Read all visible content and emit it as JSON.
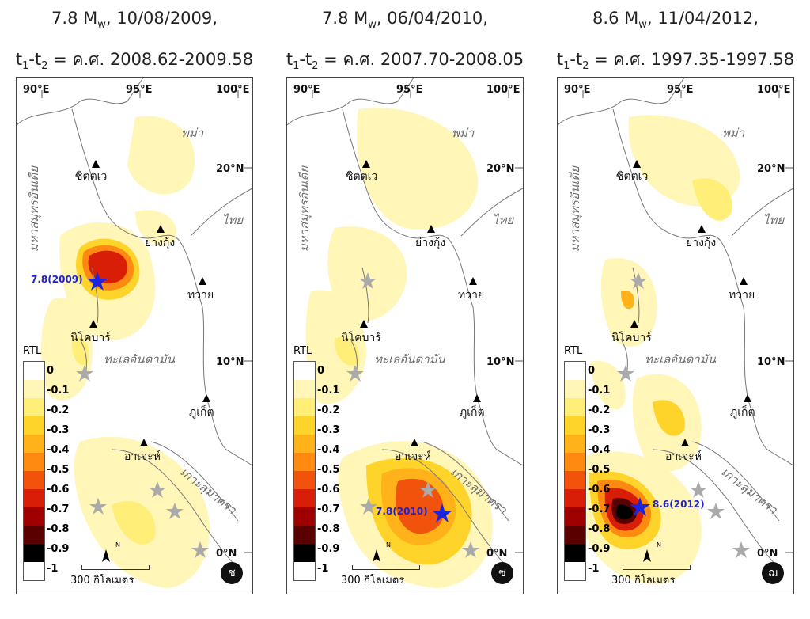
{
  "panels": [
    {
      "title_line1": "7.8 M",
      "title_sub": "w",
      "title_date": ", 10/08/2009,",
      "title_line2_t1": "t",
      "title_line2_sub1": "1",
      "title_line2_dash": "-t",
      "title_line2_sub2": "2",
      "title_line2_rest": " = ค.ศ. 2008.62-2009.58",
      "quake_label": "7.8(2009)",
      "badge": "ช"
    },
    {
      "title_line1": "7.8 M",
      "title_sub": "w",
      "title_date": ", 06/04/2010,",
      "title_line2_t1": "t",
      "title_line2_sub1": "1",
      "title_line2_dash": "-t",
      "title_line2_sub2": "2",
      "title_line2_rest": " = ค.ศ. 2007.70-2008.05",
      "quake_label": "7.8(2010)",
      "badge": "ซ"
    },
    {
      "title_line1": "8.6 M",
      "title_sub": "w",
      "title_date": ", 11/04/2012,",
      "title_line2_t1": "t",
      "title_line2_sub1": "1",
      "title_line2_dash": "-t",
      "title_line2_sub2": "2",
      "title_line2_rest": " = ค.ศ. 1997.35-1997.58",
      "quake_label": "8.6(2012)",
      "badge": "ฌ"
    }
  ],
  "map_labels": {
    "lon90": "90°E",
    "lon95": "95°E",
    "lon100": "100°E",
    "lat20": "20°N",
    "lat10": "10°N",
    "lat0": "0°N",
    "myanmar": "พม่า",
    "thailand": "ไทย",
    "indian_ocean": "มหาสมุทรอินเดีย",
    "andaman_sea": "ทะเลอันดามัน",
    "sumatra": "เกาะสุมาตรา",
    "sittwe": "ซิตตเว",
    "yangon": "ย่างกุ้ง",
    "dawei": "ทวาย",
    "nicobar": "นิโคบาร์",
    "phuket": "ภูเก็ต",
    "aceh": "อาเจะห์"
  },
  "legend": {
    "title": "RTL",
    "ticks": [
      "0",
      "-0.1",
      "-0.2",
      "-0.3",
      "-0.4",
      "-0.5",
      "-0.6",
      "-0.7",
      "-0.8",
      "-0.9",
      "-1"
    ],
    "colors": [
      "#ffffff",
      "#fff6b8",
      "#ffee77",
      "#ffd42a",
      "#ffb21a",
      "#ff8a12",
      "#f2530c",
      "#d91e08",
      "#9e0000",
      "#5a0000",
      "#000000"
    ]
  },
  "scale_bar": "300 กิโลเมตร",
  "north_label": "N"
}
